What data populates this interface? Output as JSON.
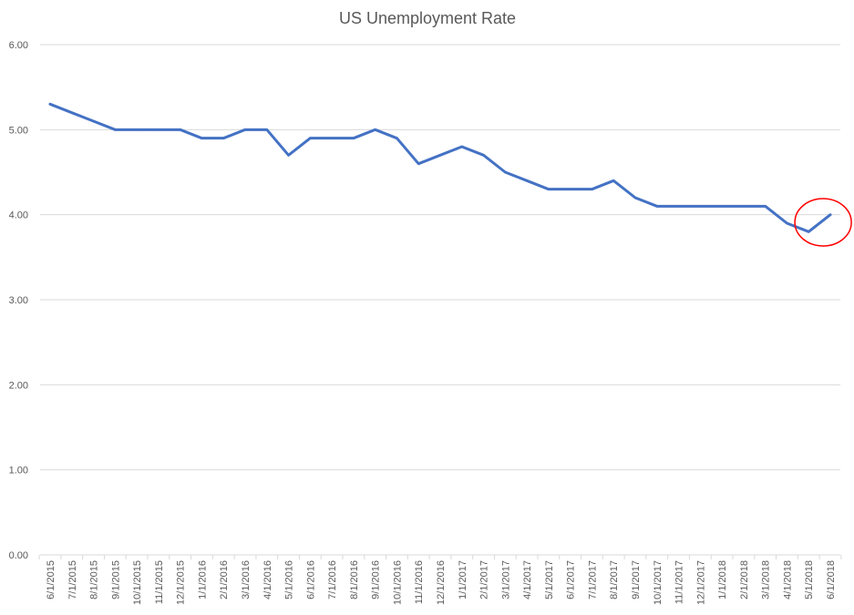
{
  "chart_data": {
    "type": "line",
    "title": "US Unemployment Rate",
    "xlabel": "",
    "ylabel": "",
    "ylim": [
      0,
      6
    ],
    "yticks": [
      "0.00",
      "1.00",
      "2.00",
      "3.00",
      "4.00",
      "5.00",
      "6.00"
    ],
    "grid": true,
    "legend": "none",
    "categories": [
      "6/1/2015",
      "7/1/2015",
      "8/1/2015",
      "9/1/2015",
      "10/1/2015",
      "11/1/2015",
      "12/1/2015",
      "1/1/2016",
      "2/1/2016",
      "3/1/2016",
      "4/1/2016",
      "5/1/2016",
      "6/1/2016",
      "7/1/2016",
      "8/1/2016",
      "9/1/2016",
      "10/1/2016",
      "11/1/2016",
      "12/1/2016",
      "1/1/2017",
      "2/1/2017",
      "3/1/2017",
      "4/1/2017",
      "5/1/2017",
      "6/1/2017",
      "7/1/2017",
      "8/1/2017",
      "9/1/2017",
      "10/1/2017",
      "11/1/2017",
      "12/1/2017",
      "1/1/2018",
      "2/1/2018",
      "3/1/2018",
      "4/1/2018",
      "5/1/2018",
      "6/1/2018"
    ],
    "series": [
      {
        "color": "#4472c4",
        "values": [
          5.3,
          5.2,
          5.1,
          5.0,
          5.0,
          5.0,
          5.0,
          4.9,
          4.9,
          5.0,
          5.0,
          4.7,
          4.9,
          4.9,
          4.9,
          5.0,
          4.9,
          4.6,
          4.7,
          4.8,
          4.7,
          4.5,
          4.4,
          4.3,
          4.3,
          4.3,
          4.4,
          4.2,
          4.1,
          4.1,
          4.1,
          4.1,
          4.1,
          4.1,
          3.9,
          3.8,
          4.0
        ]
      }
    ],
    "annotation": {
      "shape": "circle",
      "color": "#ff0000",
      "highlights": [
        "5/1/2018",
        "6/1/2018"
      ]
    }
  }
}
